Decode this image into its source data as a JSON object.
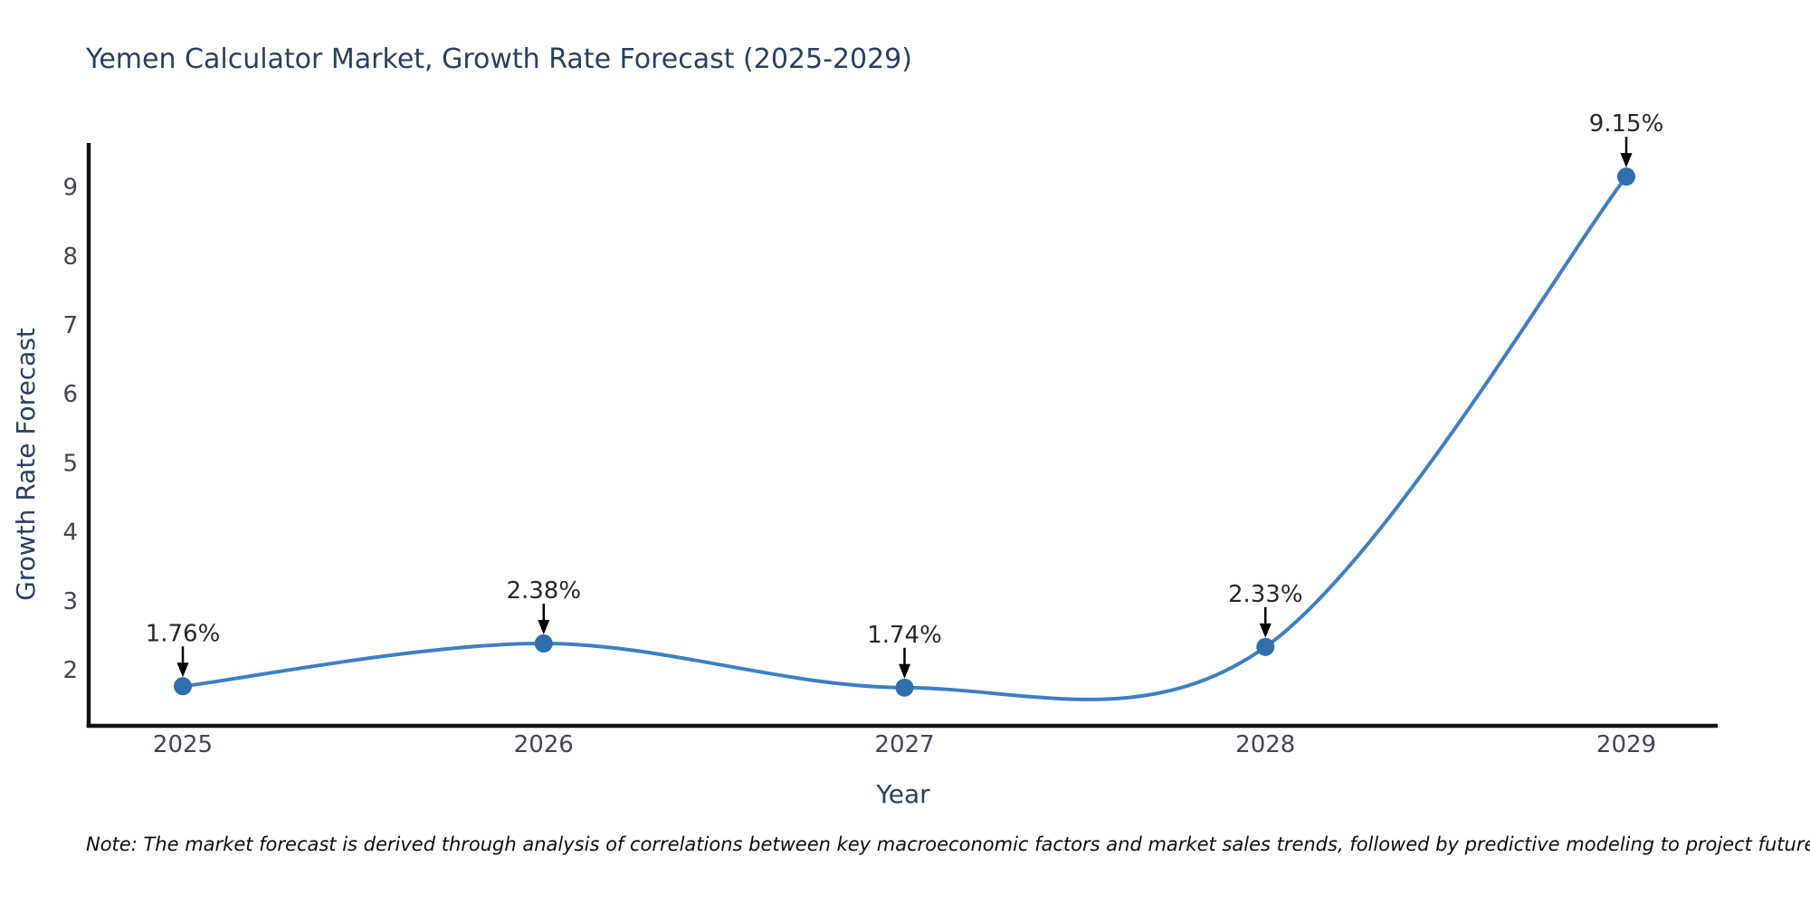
{
  "title": "Yemen Calculator Market, Growth Rate Forecast (2025-2029)",
  "note": "Note: The market forecast is derived through analysis of correlations between key macroeconomic factors and market sales trends, followed by predictive modeling to project future sales.",
  "chart_data": {
    "type": "line",
    "title": "Yemen Calculator Market, Growth Rate Forecast (2025-2029)",
    "xlabel": "Year",
    "ylabel": "Growth Rate Forecast",
    "categories": [
      "2025",
      "2026",
      "2027",
      "2028",
      "2029"
    ],
    "values": [
      1.76,
      2.38,
      1.74,
      2.33,
      9.15
    ],
    "point_labels": [
      "1.76%",
      "2.38%",
      "1.74%",
      "2.33%",
      "9.15%"
    ],
    "yticks": [
      2,
      3,
      4,
      5,
      6,
      7,
      8,
      9
    ],
    "ylim": [
      1.2,
      9.65
    ],
    "grid": false,
    "legend": false,
    "curve": "spline",
    "line_color": "#3d80c2",
    "marker_color": "#2f6fad",
    "axis_color": "#111118",
    "tick_color": "#444454",
    "title_color": "#2a3f5f",
    "annotation_text_color": "#26262c",
    "annotation_arrow_color": "#000000"
  }
}
